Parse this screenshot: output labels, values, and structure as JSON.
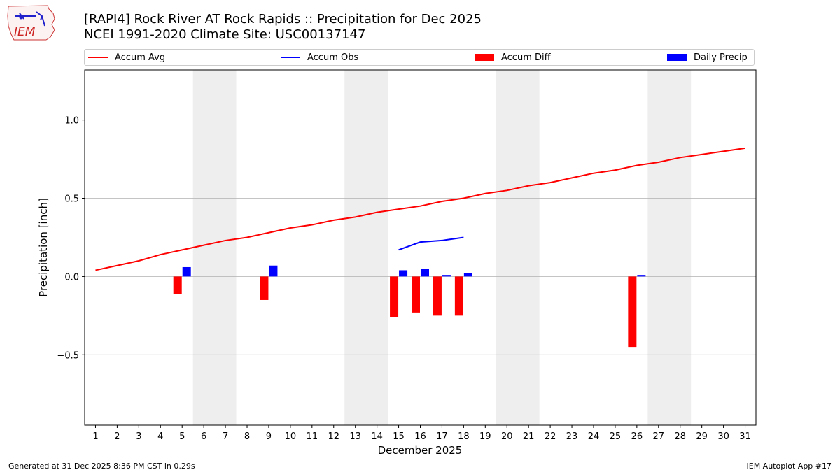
{
  "title_line1": "[RAPI4] Rock River  AT Rock Rapids :: Precipitation for Dec 2025",
  "title_line2": "NCEI 1991-2020 Climate Site: USC00137147",
  "logo_text": "IEM",
  "footer_left": "Generated at 31 Dec 2025 8:36 PM CST in 0.29s",
  "footer_right": "IEM Autoplot App #17",
  "colors": {
    "avg": "#ff0000",
    "obs": "#0000ff",
    "diff": "#ff0000",
    "daily": "#0000ff",
    "weekend": "#eeeeee",
    "grid": "#b0b0b0"
  },
  "chart_data": {
    "type": "bar+line",
    "xlabel": "December 2025",
    "ylabel": "Precipitation [inch]",
    "xlim": [
      0.5,
      31.5
    ],
    "ylim": [
      -0.95,
      1.32
    ],
    "yticks": [
      -0.5,
      0.0,
      0.5,
      1.0
    ],
    "ytick_labels": [
      "−0.5",
      "0.0",
      "0.5",
      "1.0"
    ],
    "days": [
      1,
      2,
      3,
      4,
      5,
      6,
      7,
      8,
      9,
      10,
      11,
      12,
      13,
      14,
      15,
      16,
      17,
      18,
      19,
      20,
      21,
      22,
      23,
      24,
      25,
      26,
      27,
      28,
      29,
      30,
      31
    ],
    "weekend_spans": [
      [
        5.5,
        7.5
      ],
      [
        12.5,
        14.5
      ],
      [
        19.5,
        21.5
      ],
      [
        26.5,
        28.5
      ]
    ],
    "legend": [
      "Accum Avg",
      "Accum Obs",
      "Accum Diff",
      "Daily Precip"
    ],
    "series": [
      {
        "name": "Accum Avg",
        "kind": "line",
        "x": [
          1,
          2,
          3,
          4,
          5,
          6,
          7,
          8,
          9,
          10,
          11,
          12,
          13,
          14,
          15,
          16,
          17,
          18,
          19,
          20,
          21,
          22,
          23,
          24,
          25,
          26,
          27,
          28,
          29,
          30,
          31
        ],
        "values": [
          0.04,
          0.07,
          0.1,
          0.14,
          0.17,
          0.2,
          0.23,
          0.25,
          0.28,
          0.31,
          0.33,
          0.36,
          0.38,
          0.41,
          0.43,
          0.45,
          0.48,
          0.5,
          0.53,
          0.55,
          0.58,
          0.6,
          0.63,
          0.66,
          0.68,
          0.71,
          0.73,
          0.76,
          0.78,
          0.8,
          0.82
        ]
      },
      {
        "name": "Accum Obs",
        "kind": "line",
        "x": [
          15,
          16,
          17,
          18
        ],
        "values": [
          0.17,
          0.22,
          0.23,
          0.25
        ]
      },
      {
        "name": "Accum Diff",
        "kind": "bar",
        "x": [
          5,
          9,
          15,
          16,
          17,
          18,
          26
        ],
        "values": [
          -0.11,
          -0.15,
          -0.26,
          -0.23,
          -0.25,
          -0.25,
          -0.45
        ]
      },
      {
        "name": "Daily Precip",
        "kind": "bar",
        "x": [
          5,
          9,
          15,
          16,
          17,
          18,
          26
        ],
        "values": [
          0.06,
          0.07,
          0.04,
          0.05,
          0.01,
          0.02,
          0.01
        ]
      }
    ]
  }
}
